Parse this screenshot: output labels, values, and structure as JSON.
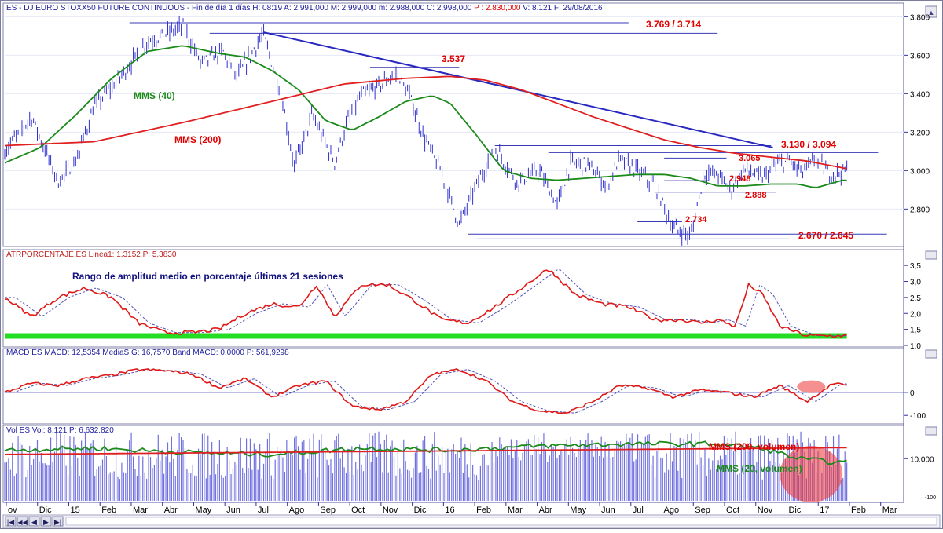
{
  "header": {
    "price": "ES - DJ EURO STOXX50 FUTURE CONTINUOUS - Fin de día 1 días H: 08:19 A: 2.991,000 M: 2.999,000 m: 2.988,000 C: 2.998,000",
    "price_p": "P : 2.830,000",
    "price_rest": "V: 8.121 F: 29/08/2016",
    "atr": "ATRPORCENTAJE ES Linea1: 1,3152 P: 5,3830",
    "macd": "MACD ES MACD: 12,5354 MediaSIG: 16,7570 Band MACD: 0,0000 P: 561,9298",
    "vol": "Vol ES Vol: 8.121 P: 6.632.820"
  },
  "annotations": {
    "r1": "3.769 / 3.714",
    "r2": "3.537",
    "r3": "3.130 / 3.094",
    "r4": "3.065",
    "s1": "2.948",
    "s2": "2.888",
    "s3": "2.734",
    "s4": "2.670 / 2.645",
    "mms40": "MMS (40)",
    "mms200": "MMS (200)",
    "atr_note": "Rango de amplitud medio en porcentaje últimas 21 sesiones",
    "vol200": "MMS (200, volumen)",
    "vol20": "MMS (20, volumen)"
  },
  "colors": {
    "price": "#3030d0",
    "mms200": "#e02020",
    "mms40": "#1a8a1a",
    "trend": "#2828c0",
    "level": "#3838b8",
    "highlight": "#ee3333",
    "atr_band": "#22dd22",
    "grid": "#9aa0c8"
  },
  "chart_data": [
    {
      "type": "line",
      "title": "ES - DJ EURO STOXX50 FUTURE CONTINUOUS",
      "yticks": [
        "3.800",
        "3.600",
        "3.400",
        "3.200",
        "3.000",
        "2.800"
      ],
      "ylim": [
        2630,
        3830
      ],
      "series": [
        {
          "name": "ES",
          "x": [
            0,
            0.03,
            0.06,
            0.08,
            0.1,
            0.13,
            0.16,
            0.2,
            0.22,
            0.245,
            0.26,
            0.29,
            0.31,
            0.325,
            0.345,
            0.37,
            0.385,
            0.4,
            0.42,
            0.44,
            0.455,
            0.47,
            0.49,
            0.51,
            0.53,
            0.55,
            0.575,
            0.6,
            0.62,
            0.635,
            0.655,
            0.675,
            0.69,
            0.71,
            0.73,
            0.75,
            0.77,
            0.785,
            0.8,
            0.815,
            0.83,
            0.85,
            0.865,
            0.88,
            0.895,
            0.91,
            0.925,
            0.945
          ],
          "values": [
            3100,
            3280,
            2940,
            3050,
            3330,
            3490,
            3670,
            3750,
            3560,
            3620,
            3480,
            3710,
            3400,
            3020,
            3290,
            3040,
            3260,
            3390,
            3440,
            3510,
            3380,
            3180,
            2990,
            2720,
            2930,
            3120,
            2940,
            3000,
            2820,
            3040,
            3030,
            2920,
            3060,
            3000,
            2920,
            2700,
            2660,
            2990,
            2980,
            2900,
            3010,
            2960,
            3030,
            3050,
            2990,
            3060,
            2980,
            3000
          ]
        },
        {
          "name": "MMS (40)",
          "x": [
            0,
            0.04,
            0.08,
            0.12,
            0.16,
            0.2,
            0.24,
            0.27,
            0.3,
            0.33,
            0.36,
            0.39,
            0.42,
            0.45,
            0.48,
            0.5,
            0.53,
            0.56,
            0.59,
            0.62,
            0.65,
            0.68,
            0.71,
            0.74,
            0.77,
            0.8,
            0.83,
            0.86,
            0.89,
            0.91,
            0.94
          ],
          "values": [
            3040,
            3120,
            3290,
            3480,
            3620,
            3650,
            3610,
            3590,
            3520,
            3420,
            3260,
            3210,
            3280,
            3360,
            3390,
            3350,
            3180,
            3000,
            2960,
            2950,
            2960,
            2970,
            2980,
            2980,
            2960,
            2920,
            2920,
            2930,
            2930,
            2910,
            2950
          ]
        },
        {
          "name": "MMS (200)",
          "x": [
            0,
            0.1,
            0.2,
            0.3,
            0.38,
            0.45,
            0.5,
            0.54,
            0.58,
            0.62,
            0.66,
            0.7,
            0.74,
            0.78,
            0.82,
            0.86,
            0.9,
            0.945
          ],
          "values": [
            3130,
            3150,
            3250,
            3360,
            3450,
            3480,
            3490,
            3470,
            3420,
            3350,
            3280,
            3220,
            3160,
            3120,
            3090,
            3070,
            3050,
            3010
          ]
        }
      ],
      "resistance_levels": [
        3769,
        3714,
        3537,
        3130,
        3094,
        3065
      ],
      "support_levels": [
        2948,
        2888,
        2734,
        2670,
        2645
      ]
    },
    {
      "type": "line",
      "title": "ATRPORCENTAJE ES",
      "yticks": [
        "3,5",
        "3,0",
        "2,5",
        "2,0",
        "1,5",
        "1,0"
      ],
      "ylim": [
        1.0,
        3.7
      ],
      "series": [
        {
          "name": "Linea1",
          "x": [
            0,
            0.03,
            0.06,
            0.09,
            0.12,
            0.15,
            0.18,
            0.21,
            0.24,
            0.27,
            0.3,
            0.33,
            0.35,
            0.37,
            0.4,
            0.43,
            0.46,
            0.49,
            0.52,
            0.55,
            0.58,
            0.61,
            0.64,
            0.67,
            0.7,
            0.73,
            0.76,
            0.78,
            0.8,
            0.82,
            0.835,
            0.85,
            0.87,
            0.9,
            0.93,
            0.96
          ],
          "values": [
            2.5,
            1.9,
            2.5,
            2.8,
            2.5,
            1.7,
            1.4,
            1.4,
            1.5,
            2.0,
            2.3,
            2.2,
            2.9,
            1.9,
            2.9,
            2.9,
            2.4,
            1.8,
            1.7,
            2.2,
            2.8,
            3.4,
            2.6,
            2.3,
            2.2,
            1.8,
            1.8,
            1.7,
            1.8,
            1.6,
            2.9,
            2.6,
            1.6,
            1.3,
            1.3,
            1.3
          ]
        }
      ]
    },
    {
      "type": "line",
      "title": "MACD ES",
      "yticks": [
        "0",
        "-100"
      ],
      "ylim": [
        -130,
        150
      ],
      "series": [
        {
          "name": "MACD",
          "x": [
            0,
            0.03,
            0.06,
            0.09,
            0.12,
            0.15,
            0.18,
            0.21,
            0.24,
            0.27,
            0.3,
            0.33,
            0.36,
            0.39,
            0.42,
            0.45,
            0.48,
            0.51,
            0.54,
            0.57,
            0.6,
            0.63,
            0.66,
            0.69,
            0.72,
            0.75,
            0.78,
            0.81,
            0.84,
            0.87,
            0.9,
            0.93,
            0.96
          ],
          "values": [
            0,
            40,
            30,
            60,
            75,
            100,
            95,
            80,
            20,
            60,
            -20,
            30,
            50,
            -60,
            -75,
            -40,
            80,
            100,
            50,
            -40,
            -80,
            -90,
            -40,
            30,
            20,
            -20,
            10,
            0,
            -20,
            30,
            -40,
            40,
            15
          ]
        }
      ]
    },
    {
      "type": "bar",
      "title": "Vol ES",
      "yticks": [
        "10.000",
        "-100"
      ],
      "series": [
        {
          "name": "MMS (200, volumen)",
          "x": [
            0,
            0.3,
            0.6,
            0.94
          ],
          "values": [
            11000,
            11500,
            12000,
            12600
          ]
        },
        {
          "name": "MMS (20, volumen)",
          "x": [
            0,
            0.1,
            0.2,
            0.3,
            0.4,
            0.5,
            0.6,
            0.7,
            0.8,
            0.85,
            0.89,
            0.94
          ],
          "values": [
            12000,
            12500,
            11500,
            11000,
            12500,
            12000,
            13000,
            13500,
            13500,
            12500,
            10000,
            9000
          ]
        }
      ]
    }
  ],
  "x_axis": [
    "ov",
    "Dic",
    "15",
    "Feb",
    "Mar",
    "Abr",
    "May",
    "Jun",
    "Jul",
    "Ago",
    "Sep",
    "Oct",
    "Nov",
    "Dic",
    "16",
    "Feb",
    "Mar",
    "Abr",
    "May",
    "Jun",
    "Jul",
    "Ago",
    "Sep",
    "Oct",
    "Nov",
    "Dic",
    "17",
    "Feb",
    "Mar"
  ]
}
